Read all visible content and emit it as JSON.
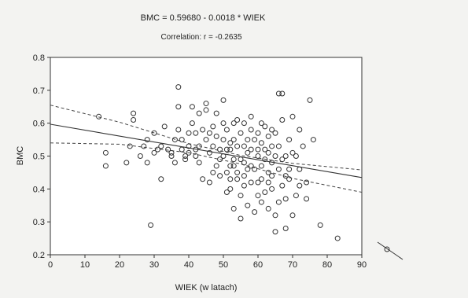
{
  "chart_data": {
    "type": "scatter",
    "title": "BMC = 0.59680 - 0.0018 * WIEK",
    "subtitle": "Correlation: r = -0.2635",
    "xlabel": "WIEK (w latach)",
    "ylabel": "BMC",
    "xlim": [
      0,
      90
    ],
    "ylim": [
      0.2,
      0.8
    ],
    "xticks": [
      "0",
      "10",
      "20",
      "30",
      "40",
      "50",
      "60",
      "70",
      "80",
      "90"
    ],
    "yticks": [
      "0.2",
      "0.3",
      "0.4",
      "0.5",
      "0.6",
      "0.7",
      "0.8"
    ],
    "regression": {
      "intercept": 0.5968,
      "slope": -0.0018,
      "x_range": [
        0,
        90
      ]
    },
    "confidence_band": {
      "upper": [
        [
          0,
          0.655
        ],
        [
          20,
          0.603
        ],
        [
          40,
          0.538
        ],
        [
          55,
          0.502
        ],
        [
          70,
          0.478
        ],
        [
          90,
          0.458
        ]
      ],
      "lower": [
        [
          0,
          0.54
        ],
        [
          20,
          0.536
        ],
        [
          40,
          0.51
        ],
        [
          55,
          0.476
        ],
        [
          70,
          0.432
        ],
        [
          90,
          0.39
        ]
      ]
    },
    "grid": false,
    "points": [
      [
        14,
        0.62
      ],
      [
        16,
        0.47
      ],
      [
        16,
        0.51
      ],
      [
        22,
        0.48
      ],
      [
        23,
        0.53
      ],
      [
        24,
        0.63
      ],
      [
        24,
        0.61
      ],
      [
        26,
        0.5
      ],
      [
        27,
        0.53
      ],
      [
        28,
        0.48
      ],
      [
        28,
        0.55
      ],
      [
        29,
        0.29
      ],
      [
        30,
        0.51
      ],
      [
        30,
        0.57
      ],
      [
        31,
        0.52
      ],
      [
        32,
        0.43
      ],
      [
        32,
        0.53
      ],
      [
        33,
        0.59
      ],
      [
        34,
        0.52
      ],
      [
        35,
        0.51
      ],
      [
        35,
        0.5
      ],
      [
        36,
        0.55
      ],
      [
        36,
        0.48
      ],
      [
        37,
        0.71
      ],
      [
        37,
        0.65
      ],
      [
        37,
        0.58
      ],
      [
        38,
        0.52
      ],
      [
        38,
        0.55
      ],
      [
        39,
        0.5
      ],
      [
        39,
        0.49
      ],
      [
        40,
        0.53
      ],
      [
        40,
        0.57
      ],
      [
        40,
        0.51
      ],
      [
        41,
        0.65
      ],
      [
        41,
        0.6
      ],
      [
        42,
        0.52
      ],
      [
        42,
        0.57
      ],
      [
        43,
        0.63
      ],
      [
        43,
        0.53
      ],
      [
        43,
        0.48
      ],
      [
        44,
        0.43
      ],
      [
        44,
        0.58
      ],
      [
        45,
        0.55
      ],
      [
        45,
        0.66
      ],
      [
        45,
        0.64
      ],
      [
        46,
        0.57
      ],
      [
        46,
        0.51
      ],
      [
        46,
        0.42
      ],
      [
        47,
        0.59
      ],
      [
        47,
        0.53
      ],
      [
        48,
        0.47
      ],
      [
        48,
        0.56
      ],
      [
        48,
        0.63
      ],
      [
        49,
        0.52
      ],
      [
        49,
        0.49
      ],
      [
        49,
        0.44
      ],
      [
        50,
        0.67
      ],
      [
        50,
        0.6
      ],
      [
        50,
        0.55
      ],
      [
        50,
        0.5
      ],
      [
        51,
        0.45
      ],
      [
        51,
        0.39
      ],
      [
        51,
        0.58
      ],
      [
        51,
        0.52
      ],
      [
        52,
        0.47
      ],
      [
        52,
        0.4
      ],
      [
        52,
        0.43
      ],
      [
        52,
        0.54
      ],
      [
        53,
        0.34
      ],
      [
        53,
        0.47
      ],
      [
        53,
        0.55
      ],
      [
        53,
        0.49
      ],
      [
        54,
        0.53
      ],
      [
        54,
        0.45
      ],
      [
        54,
        0.43
      ],
      [
        54,
        0.61
      ],
      [
        55,
        0.57
      ],
      [
        55,
        0.49
      ],
      [
        55,
        0.38
      ],
      [
        55,
        0.31
      ],
      [
        56,
        0.53
      ],
      [
        56,
        0.48
      ],
      [
        56,
        0.44
      ],
      [
        56,
        0.6
      ],
      [
        57,
        0.51
      ],
      [
        57,
        0.35
      ],
      [
        57,
        0.46
      ],
      [
        58,
        0.58
      ],
      [
        58,
        0.52
      ],
      [
        58,
        0.47
      ],
      [
        58,
        0.42
      ],
      [
        59,
        0.55
      ],
      [
        59,
        0.33
      ],
      [
        59,
        0.46
      ],
      [
        60,
        0.57
      ],
      [
        60,
        0.5
      ],
      [
        60,
        0.42
      ],
      [
        60,
        0.38
      ],
      [
        61,
        0.6
      ],
      [
        61,
        0.54
      ],
      [
        61,
        0.47
      ],
      [
        61,
        0.43
      ],
      [
        62,
        0.52
      ],
      [
        62,
        0.49
      ],
      [
        62,
        0.39
      ],
      [
        62,
        0.59
      ],
      [
        63,
        0.45
      ],
      [
        63,
        0.51
      ],
      [
        63,
        0.56
      ],
      [
        63,
        0.34
      ],
      [
        64,
        0.48
      ],
      [
        64,
        0.53
      ],
      [
        64,
        0.4
      ],
      [
        64,
        0.44
      ],
      [
        65,
        0.27
      ],
      [
        65,
        0.32
      ],
      [
        65,
        0.57
      ],
      [
        65,
        0.5
      ],
      [
        66,
        0.46
      ],
      [
        66,
        0.53
      ],
      [
        66,
        0.36
      ],
      [
        67,
        0.69
      ],
      [
        67,
        0.61
      ],
      [
        67,
        0.49
      ],
      [
        67,
        0.41
      ],
      [
        68,
        0.44
      ],
      [
        68,
        0.37
      ],
      [
        68,
        0.28
      ],
      [
        69,
        0.55
      ],
      [
        69,
        0.46
      ],
      [
        69,
        0.43
      ],
      [
        70,
        0.51
      ],
      [
        70,
        0.62
      ],
      [
        70,
        0.32
      ],
      [
        71,
        0.5
      ],
      [
        71,
        0.38
      ],
      [
        72,
        0.58
      ],
      [
        72,
        0.41
      ],
      [
        72,
        0.46
      ],
      [
        73,
        0.53
      ],
      [
        74,
        0.42
      ],
      [
        74,
        0.37
      ],
      [
        75,
        0.67
      ],
      [
        76,
        0.55
      ],
      [
        78,
        0.29
      ],
      [
        83,
        0.25
      ],
      [
        66,
        0.69
      ],
      [
        60,
        0.52
      ],
      [
        57,
        0.55
      ],
      [
        47,
        0.45
      ],
      [
        52,
        0.52
      ],
      [
        42,
        0.5
      ],
      [
        53,
        0.6
      ],
      [
        64,
        0.58
      ],
      [
        58,
        0.62
      ],
      [
        61,
        0.36
      ],
      [
        63,
        0.42
      ],
      [
        68,
        0.5
      ],
      [
        56,
        0.41
      ]
    ]
  }
}
